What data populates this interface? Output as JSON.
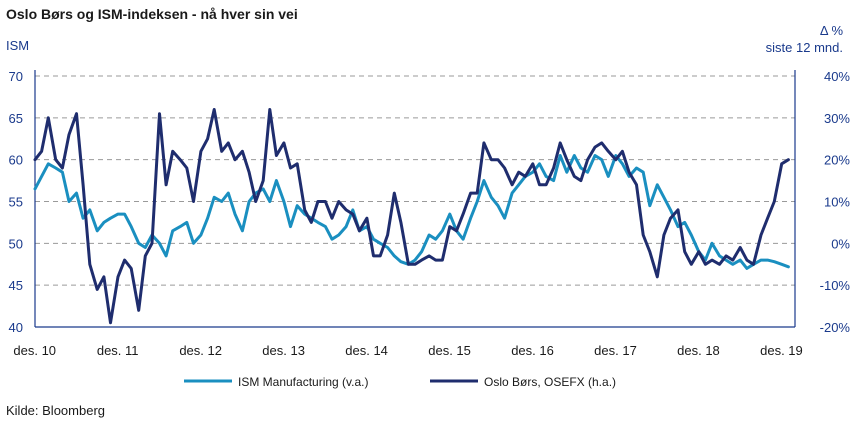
{
  "chart_data": {
    "type": "line",
    "title": "Oslo Børs og ISM-indeksen - nå hver sin vei",
    "left_axis": {
      "label": "ISM",
      "ylim": [
        40,
        70
      ],
      "ticks": [
        "40",
        "45",
        "50",
        "55",
        "60",
        "65",
        "70"
      ]
    },
    "right_axis": {
      "label_line1": "Δ %",
      "label_line2": "siste 12 mnd.",
      "ylim": [
        -20,
        40
      ],
      "ticks": [
        "-20%",
        "-10%",
        "0%",
        "10%",
        "20%",
        "30%",
        "40%"
      ]
    },
    "x_ticks": [
      "des. 10",
      "des. 11",
      "des. 12",
      "des. 13",
      "des. 14",
      "des. 15",
      "des. 16",
      "des. 17",
      "des. 18",
      "des. 19"
    ],
    "xlim": [
      2010.92,
      2020.08
    ],
    "grid": "horizontal-dashed",
    "legend_position": "bottom",
    "source": "Kilde: Bloomberg",
    "colors": {
      "ism": "#1a8fc0",
      "osefx": "#1f2d6e",
      "grid": "#9a9a9a",
      "axis": "#1a3a8c"
    },
    "series": [
      {
        "name": "ISM Manufacturing  (v.a.)",
        "axis": "left",
        "x": [
          2010.92,
          2011.0,
          2011.08,
          2011.17,
          2011.25,
          2011.33,
          2011.42,
          2011.5,
          2011.58,
          2011.67,
          2011.75,
          2011.83,
          2011.92,
          2012.0,
          2012.08,
          2012.17,
          2012.25,
          2012.33,
          2012.42,
          2012.5,
          2012.58,
          2012.67,
          2012.75,
          2012.83,
          2012.92,
          2013.0,
          2013.08,
          2013.17,
          2013.25,
          2013.33,
          2013.42,
          2013.5,
          2013.58,
          2013.67,
          2013.75,
          2013.83,
          2013.92,
          2014.0,
          2014.08,
          2014.17,
          2014.25,
          2014.33,
          2014.42,
          2014.5,
          2014.58,
          2014.67,
          2014.75,
          2014.83,
          2014.92,
          2015.0,
          2015.08,
          2015.17,
          2015.25,
          2015.33,
          2015.42,
          2015.5,
          2015.58,
          2015.67,
          2015.75,
          2015.83,
          2015.92,
          2016.0,
          2016.08,
          2016.17,
          2016.25,
          2016.33,
          2016.42,
          2016.5,
          2016.58,
          2016.67,
          2016.75,
          2016.83,
          2016.92,
          2017.0,
          2017.08,
          2017.17,
          2017.25,
          2017.33,
          2017.42,
          2017.5,
          2017.58,
          2017.67,
          2017.75,
          2017.83,
          2017.92,
          2018.0,
          2018.08,
          2018.17,
          2018.25,
          2018.33,
          2018.42,
          2018.5,
          2018.58,
          2018.67,
          2018.75,
          2018.83,
          2018.92,
          2019.0,
          2019.08,
          2019.17,
          2019.25,
          2019.33,
          2019.42,
          2019.5,
          2019.58,
          2019.67,
          2019.75,
          2019.83,
          2019.92,
          2020.0
        ],
        "values": [
          56.5,
          58.0,
          59.5,
          59.0,
          58.5,
          55.0,
          56.0,
          53.0,
          54.0,
          51.5,
          52.5,
          53.0,
          53.5,
          53.5,
          52.0,
          50.0,
          49.5,
          51.0,
          50.0,
          48.5,
          51.5,
          52.0,
          52.5,
          50.0,
          51.0,
          53.0,
          55.5,
          55.0,
          56.0,
          53.5,
          51.5,
          55.0,
          56.0,
          56.5,
          55.0,
          57.5,
          55.0,
          52.0,
          54.5,
          53.5,
          53.0,
          52.5,
          52.0,
          50.5,
          51.0,
          52.0,
          54.0,
          51.5,
          52.0,
          50.5,
          50.0,
          49.5,
          48.5,
          47.8,
          47.5,
          48.0,
          49.0,
          51.0,
          50.5,
          51.5,
          53.5,
          51.5,
          50.5,
          53.0,
          55.0,
          57.5,
          55.5,
          54.5,
          53.0,
          56.0,
          57.0,
          58.0,
          58.5,
          59.5,
          58.0,
          57.5,
          60.5,
          58.5,
          60.5,
          59.0,
          58.5,
          60.5,
          60.0,
          58.0,
          60.5,
          59.5,
          58.0,
          59.0,
          58.5,
          54.5,
          57.0,
          55.5,
          54.0,
          52.0,
          52.5,
          51.0,
          49.0,
          48.0,
          50.0,
          48.5,
          48.0,
          47.5,
          48.0,
          47.0,
          47.5,
          48.0,
          48.0,
          47.8,
          47.5,
          47.2
        ]
      },
      {
        "name": "Oslo Børs, OSEFX (h.a.)",
        "axis": "right",
        "x": [
          2010.92,
          2011.0,
          2011.08,
          2011.17,
          2011.25,
          2011.33,
          2011.42,
          2011.5,
          2011.58,
          2011.67,
          2011.75,
          2011.83,
          2011.92,
          2012.0,
          2012.08,
          2012.17,
          2012.25,
          2012.33,
          2012.42,
          2012.5,
          2012.58,
          2012.67,
          2012.75,
          2012.83,
          2012.92,
          2013.0,
          2013.08,
          2013.17,
          2013.25,
          2013.33,
          2013.42,
          2013.5,
          2013.58,
          2013.67,
          2013.75,
          2013.83,
          2013.92,
          2014.0,
          2014.08,
          2014.17,
          2014.25,
          2014.33,
          2014.42,
          2014.5,
          2014.58,
          2014.67,
          2014.75,
          2014.83,
          2014.92,
          2015.0,
          2015.08,
          2015.17,
          2015.25,
          2015.33,
          2015.42,
          2015.5,
          2015.58,
          2015.67,
          2015.75,
          2015.83,
          2015.92,
          2016.0,
          2016.08,
          2016.17,
          2016.25,
          2016.33,
          2016.42,
          2016.5,
          2016.58,
          2016.67,
          2016.75,
          2016.83,
          2016.92,
          2017.0,
          2017.08,
          2017.17,
          2017.25,
          2017.33,
          2017.42,
          2017.5,
          2017.58,
          2017.67,
          2017.75,
          2017.83,
          2017.92,
          2018.0,
          2018.08,
          2018.17,
          2018.25,
          2018.33,
          2018.42,
          2018.5,
          2018.58,
          2018.67,
          2018.75,
          2018.83,
          2018.92,
          2019.0,
          2019.08,
          2019.17,
          2019.25,
          2019.33,
          2019.42,
          2019.5,
          2019.58,
          2019.67,
          2019.75,
          2019.83,
          2019.92,
          2020.0
        ],
        "values": [
          20,
          22,
          30,
          20,
          18,
          26,
          31,
          14,
          -5,
          -11,
          -8,
          -19,
          -8,
          -4,
          -6,
          -16,
          -3,
          0,
          31,
          14,
          22,
          20,
          18,
          10,
          22,
          25,
          32,
          22,
          24,
          20,
          22,
          17,
          10,
          15,
          32,
          21,
          24,
          18,
          19,
          8,
          5,
          10,
          10,
          6,
          10,
          8,
          7,
          3,
          6,
          -3,
          -3,
          2,
          12,
          5,
          -5,
          -5,
          -4,
          -3,
          -4,
          -4,
          4,
          3,
          7,
          12,
          12,
          24,
          20,
          20,
          18,
          14,
          17,
          16,
          19,
          14,
          14,
          18,
          24,
          20,
          16,
          15,
          20,
          23,
          24,
          22,
          20,
          22,
          17,
          14,
          2,
          -2,
          -8,
          2,
          6,
          8,
          -2,
          -5,
          -2,
          -5,
          -4,
          -5,
          -3,
          -4,
          -1,
          -4,
          -5,
          2,
          6,
          10,
          19,
          20
        ]
      }
    ]
  }
}
